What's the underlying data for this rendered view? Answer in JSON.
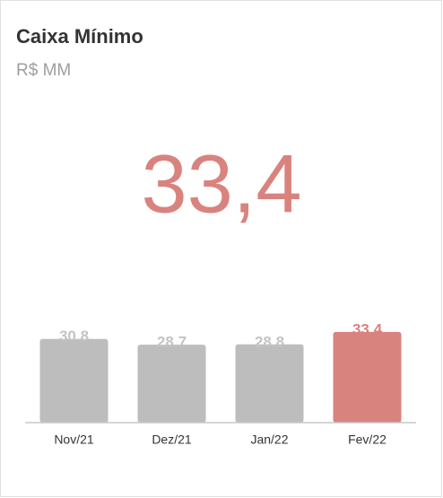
{
  "title": "Caixa Mínimo",
  "subtitle": "R$ MM",
  "kpi": "33,4",
  "chart_data": {
    "type": "bar",
    "categories": [
      "Nov/21",
      "Dez/21",
      "Jan/22",
      "Fev/22"
    ],
    "values": [
      30.8,
      28.7,
      28.8,
      33.4
    ],
    "colors": [
      "#bdbdbd",
      "#bdbdbd",
      "#bdbdbd",
      "#d9837f"
    ],
    "ylim": [
      0,
      36
    ]
  }
}
